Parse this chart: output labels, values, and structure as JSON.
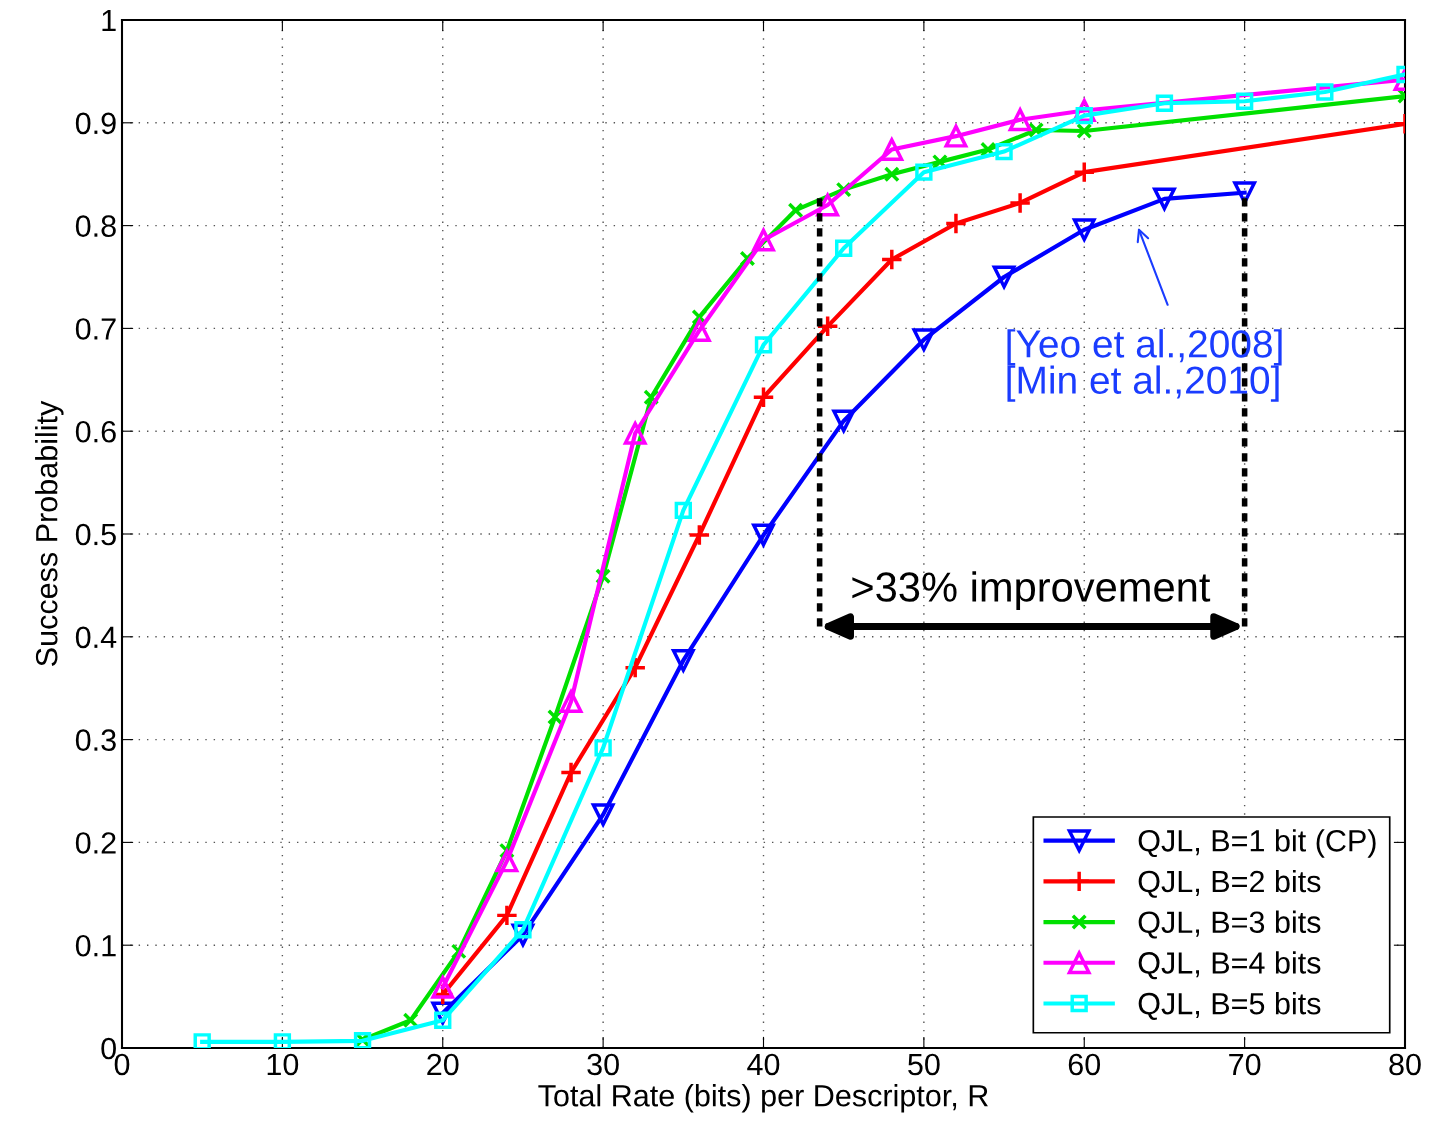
{
  "chart_data": {
    "type": "line",
    "xlabel": "Total Rate (bits) per Descriptor, R",
    "ylabel": "Success Probability",
    "xlim": [
      0,
      80
    ],
    "xticks": [
      0,
      10,
      20,
      30,
      40,
      50,
      60,
      70,
      80
    ],
    "ylim": [
      0,
      1
    ],
    "yticks": [
      0,
      0.1,
      0.2,
      0.3,
      0.4,
      0.5,
      0.6,
      0.7,
      0.8,
      0.9,
      1
    ],
    "grid": true,
    "legend": "bottom right",
    "line_style": "solid",
    "series": [
      {
        "name": "QJL, B=1 bit (CP)",
        "color": "#0000ff",
        "marker": "triangle_down",
        "x": [
          20,
          25,
          30,
          35,
          40,
          45,
          50,
          55,
          60,
          65,
          70
        ],
        "values": [
          0.034,
          0.11,
          0.227,
          0.377,
          0.499,
          0.61,
          0.689,
          0.75,
          0.796,
          0.826,
          0.832
        ]
      },
      {
        "name": "QJL, B=2 bits",
        "color": "#ff0000",
        "marker": "plus",
        "x": [
          20,
          24,
          28,
          32,
          36,
          40,
          44,
          48,
          52,
          56,
          60,
          80
        ],
        "values": [
          0.052,
          0.129,
          0.268,
          0.37,
          0.499,
          0.633,
          0.702,
          0.767,
          0.802,
          0.822,
          0.852,
          0.899
        ]
      },
      {
        "name": "QJL, B=3 bits",
        "color": "#00e000",
        "marker": "cross",
        "x": [
          15,
          18,
          21,
          24,
          27,
          30,
          33,
          36,
          39,
          42,
          45,
          48,
          51,
          54,
          57,
          60,
          80
        ],
        "values": [
          0.008,
          0.027,
          0.094,
          0.192,
          0.322,
          0.459,
          0.633,
          0.711,
          0.768,
          0.815,
          0.835,
          0.85,
          0.862,
          0.874,
          0.893,
          0.892,
          0.926
        ]
      },
      {
        "name": "QJL, B=4 bits",
        "color": "#ff00ff",
        "marker": "triangle",
        "x": [
          20,
          24,
          28,
          32,
          36,
          40,
          44,
          48,
          52,
          56,
          60,
          80
        ],
        "values": [
          0.059,
          0.182,
          0.337,
          0.598,
          0.698,
          0.786,
          0.82,
          0.874,
          0.887,
          0.903,
          0.912,
          0.942
        ]
      },
      {
        "name": "QJL, B=5 bits",
        "color": "#00ffff",
        "marker": "square",
        "x": [
          5,
          10,
          15,
          20,
          25,
          30,
          35,
          40,
          45,
          50,
          55,
          60,
          65,
          70,
          75,
          80
        ],
        "values": [
          0.006,
          0.006,
          0.007,
          0.027,
          0.115,
          0.292,
          0.523,
          0.684,
          0.778,
          0.852,
          0.872,
          0.907,
          0.919,
          0.921,
          0.93,
          0.947
        ]
      },
      {
        "color": "#000000",
        "marker": "none",
        "line_style": "dashed",
        "x": [
          43.5,
          43.5
        ],
        "values": [
          0.41,
          0.83
        ]
      },
      {
        "color": "#000000",
        "marker": "none",
        "line_style": "dashed",
        "x": [
          70,
          70
        ],
        "values": [
          0.41,
          0.83
        ]
      }
    ],
    "annotations": [
      ">33% improvement",
      "[Yeo et al.,2008]\n[Min et al.,2010]"
    ]
  }
}
